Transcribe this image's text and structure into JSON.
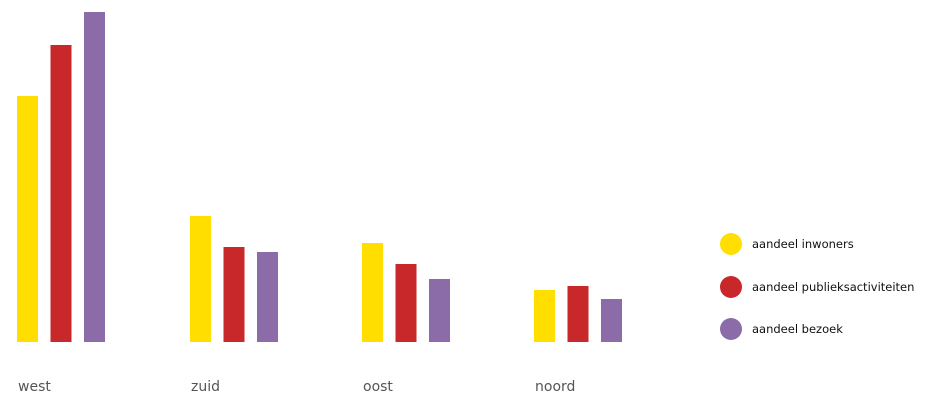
{
  "chart_data": {
    "type": "bar",
    "categories": [
      "west",
      "zuid",
      "oost",
      "noord"
    ],
    "series": [
      {
        "name": "aandeel inwoners",
        "color": "#FFDE00",
        "values": [
          246,
          126,
          99,
          52
        ]
      },
      {
        "name": "aandeel publieksactiviteiten",
        "color": "#C8282A",
        "values": [
          297,
          95,
          78,
          56
        ]
      },
      {
        "name": "aandeel bezoek",
        "color": "#8B6CA8",
        "values": [
          330,
          90,
          63,
          43
        ]
      }
    ],
    "ylim": [
      0,
      330
    ],
    "grid": false,
    "legend_position": "right"
  }
}
